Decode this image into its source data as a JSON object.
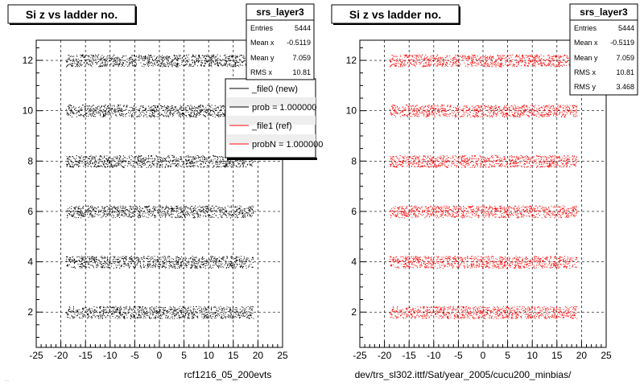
{
  "footer_text": "...",
  "chart_data": [
    {
      "type": "scatter",
      "title": "Si z vs ladder no.",
      "xlabel": "rcf1216_05_200evts",
      "ylabel": "",
      "xlim": [
        -25,
        25
      ],
      "ylim": [
        0.6,
        12.8
      ],
      "x_ticks": [
        -25,
        -20,
        -15,
        -10,
        -5,
        0,
        5,
        10,
        15,
        20,
        25
      ],
      "y_ticks": [
        2,
        4,
        6,
        8,
        10,
        12
      ],
      "grid": true,
      "marker_color": "#000000",
      "bands": [
        {
          "ladder": 2,
          "x_range": [
            -19,
            19
          ]
        },
        {
          "ladder": 4,
          "x_range": [
            -19,
            19
          ]
        },
        {
          "ladder": 6,
          "x_range": [
            -19,
            19
          ]
        },
        {
          "ladder": 8,
          "x_range": [
            -19,
            19
          ]
        },
        {
          "ladder": 10,
          "x_range": [
            -19,
            19
          ]
        },
        {
          "ladder": 12,
          "x_range": [
            -19,
            19
          ]
        }
      ],
      "stats": {
        "name": "srs_layer3",
        "rows": [
          {
            "label": "Entries",
            "value": "5444"
          },
          {
            "label": "Mean x",
            "value": "-0.5119"
          },
          {
            "label": "Mean y",
            "value": "7.059"
          },
          {
            "label": "RMS x",
            "value": "10.81"
          }
        ]
      },
      "legend": {
        "placement": "top-right",
        "entries": [
          {
            "label": "_file0 (new)",
            "color": "#000000"
          },
          {
            "label": "prob = 1.000000",
            "color": "#000000"
          },
          {
            "label": "_file1 (ref)",
            "color": "#ff0000"
          },
          {
            "label": "probN = 1.000000",
            "color": "#ff0000"
          }
        ]
      }
    },
    {
      "type": "scatter",
      "title": "Si z vs ladder no.",
      "xlabel": "dev/trs_sl302.ittf/Sat/year_2005/cucu200_minbias/",
      "ylabel": "",
      "xlim": [
        -25,
        25
      ],
      "ylim": [
        0.6,
        12.8
      ],
      "x_ticks": [
        -25,
        -20,
        -15,
        -10,
        -5,
        0,
        5,
        10,
        15,
        20,
        25
      ],
      "y_ticks": [
        2,
        4,
        6,
        8,
        10,
        12
      ],
      "grid": true,
      "marker_color": "#ff0000",
      "bands": [
        {
          "ladder": 2,
          "x_range": [
            -19,
            19
          ]
        },
        {
          "ladder": 4,
          "x_range": [
            -19,
            19
          ]
        },
        {
          "ladder": 6,
          "x_range": [
            -19,
            19
          ]
        },
        {
          "ladder": 8,
          "x_range": [
            -19,
            19
          ]
        },
        {
          "ladder": 10,
          "x_range": [
            -19,
            19
          ]
        },
        {
          "ladder": 12,
          "x_range": [
            -19,
            19
          ]
        }
      ],
      "stats": {
        "name": "srs_layer3",
        "rows": [
          {
            "label": "Entries",
            "value": "5444"
          },
          {
            "label": "Mean x",
            "value": "-0.5119"
          },
          {
            "label": "Mean y",
            "value": "7.059"
          },
          {
            "label": "RMS x",
            "value": "10.81"
          },
          {
            "label": "RMS y",
            "value": "3.468"
          }
        ]
      }
    }
  ]
}
